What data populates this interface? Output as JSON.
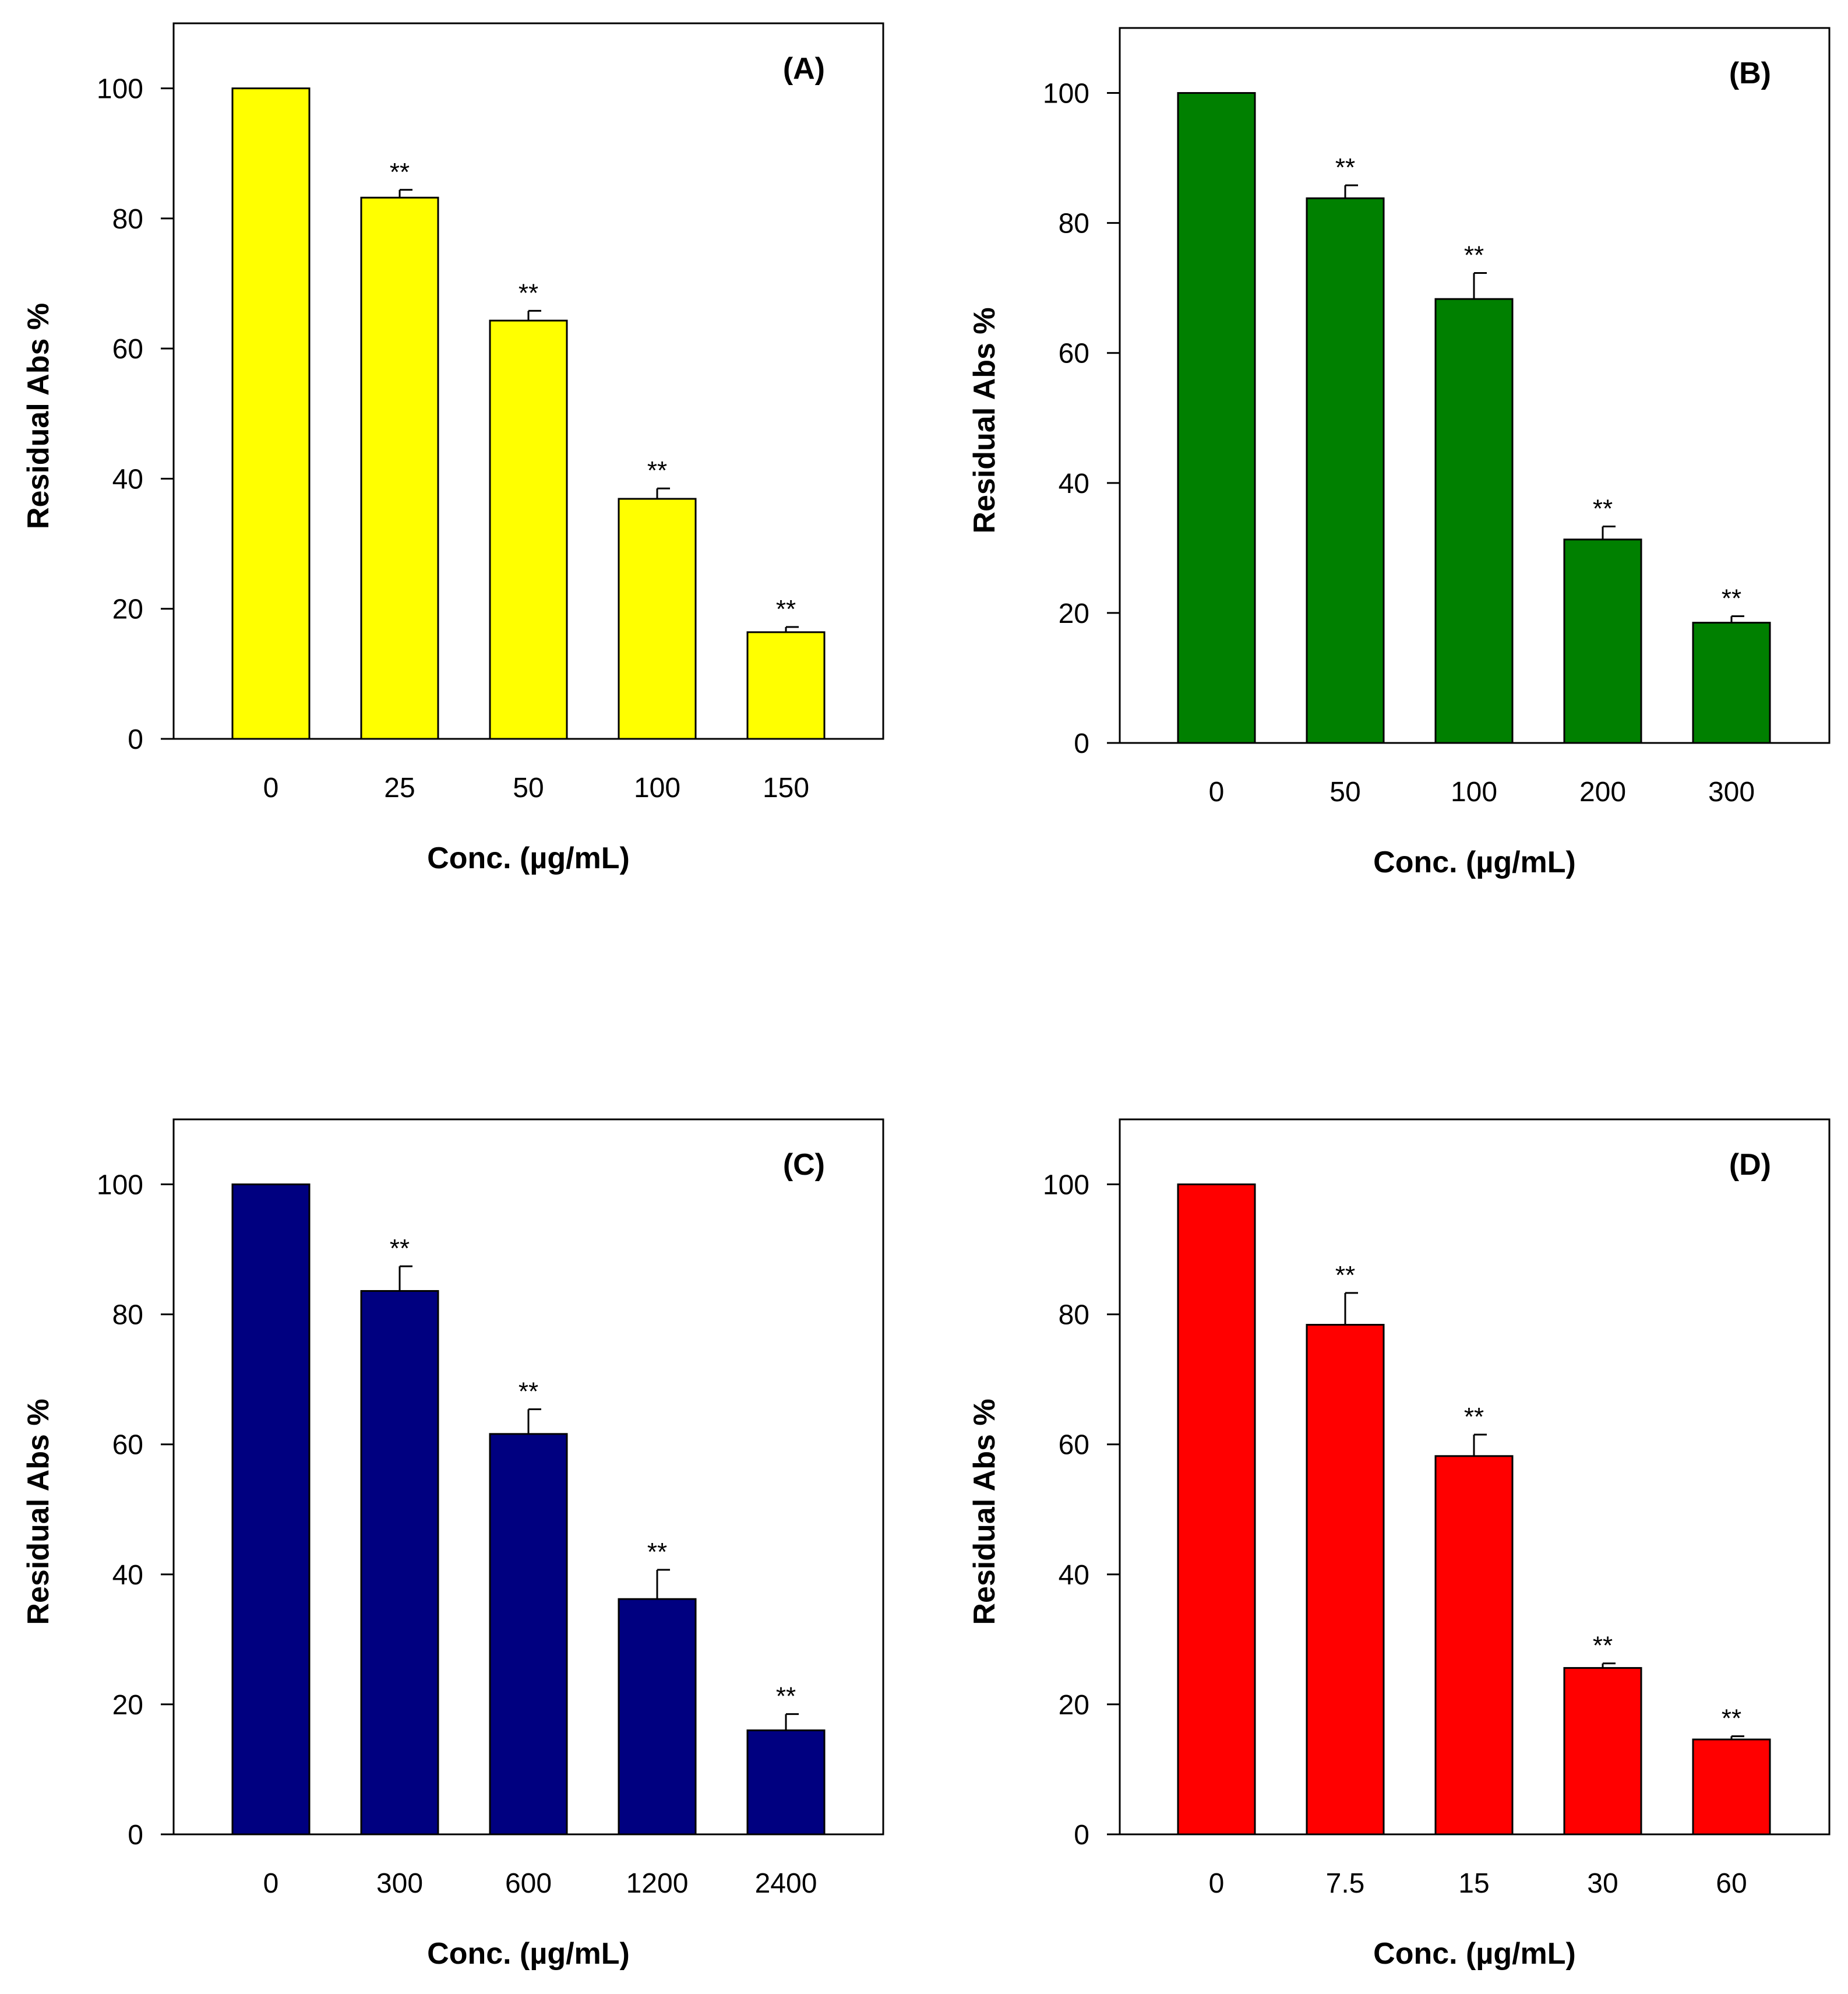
{
  "chart_data": [
    {
      "type": "bar",
      "panel_label": "(A)",
      "title": "",
      "xlabel": "Conc. (µg/mL)",
      "ylabel": "Residual Abs %",
      "ylim": [
        0,
        110
      ],
      "yticks": [
        0,
        20,
        40,
        60,
        80,
        100
      ],
      "bar_color": "#ffff00",
      "categories": [
        "0",
        "25",
        "50",
        "100",
        "150"
      ],
      "values": [
        100,
        83.2,
        64.3,
        36.9,
        16.4
      ],
      "errors": [
        0,
        1.2,
        1.5,
        1.6,
        0.8
      ],
      "annotations": [
        "",
        "**",
        "**",
        "**",
        "**"
      ],
      "grid": false,
      "legend": "none"
    },
    {
      "type": "bar",
      "panel_label": "(B)",
      "title": "",
      "xlabel": "Conc. (µg/mL)",
      "ylabel": "Residual Abs %",
      "ylim": [
        0,
        110
      ],
      "yticks": [
        0,
        20,
        40,
        60,
        80,
        100
      ],
      "bar_color": "#008000",
      "categories": [
        "0",
        "50",
        "100",
        "200",
        "300"
      ],
      "values": [
        100,
        83.8,
        68.3,
        31.3,
        18.5
      ],
      "errors": [
        0,
        2.0,
        4.0,
        2.0,
        1.0
      ],
      "annotations": [
        "",
        "**",
        "**",
        "**",
        "**"
      ],
      "grid": false,
      "legend": "none"
    },
    {
      "type": "bar",
      "panel_label": "(C)",
      "title": "",
      "xlabel": "Conc. (µg/mL)",
      "ylabel": "Residual Abs %",
      "ylim": [
        0,
        110
      ],
      "yticks": [
        0,
        20,
        40,
        60,
        80,
        100
      ],
      "bar_color": "#000080",
      "categories": [
        "0",
        "300",
        "600",
        "1200",
        "2400"
      ],
      "values": [
        100,
        83.6,
        61.6,
        36.2,
        16.0
      ],
      "errors": [
        0,
        3.8,
        3.8,
        4.5,
        2.5
      ],
      "annotations": [
        "",
        "**",
        "**",
        "**",
        "**"
      ],
      "grid": false,
      "legend": "none"
    },
    {
      "type": "bar",
      "panel_label": "(D)",
      "title": "",
      "xlabel": "Conc. (µg/mL)",
      "ylabel": "Residual Abs %",
      "ylim": [
        0,
        110
      ],
      "yticks": [
        0,
        20,
        40,
        60,
        80,
        100
      ],
      "bar_color": "#ff0000",
      "categories": [
        "0",
        "7.5",
        "15",
        "30",
        "60"
      ],
      "values": [
        100,
        78.4,
        58.2,
        25.6,
        14.6
      ],
      "errors": [
        0,
        4.9,
        3.3,
        0.7,
        0.5
      ],
      "annotations": [
        "",
        "**",
        "**",
        "**",
        "**"
      ],
      "grid": false,
      "legend": "none"
    }
  ]
}
